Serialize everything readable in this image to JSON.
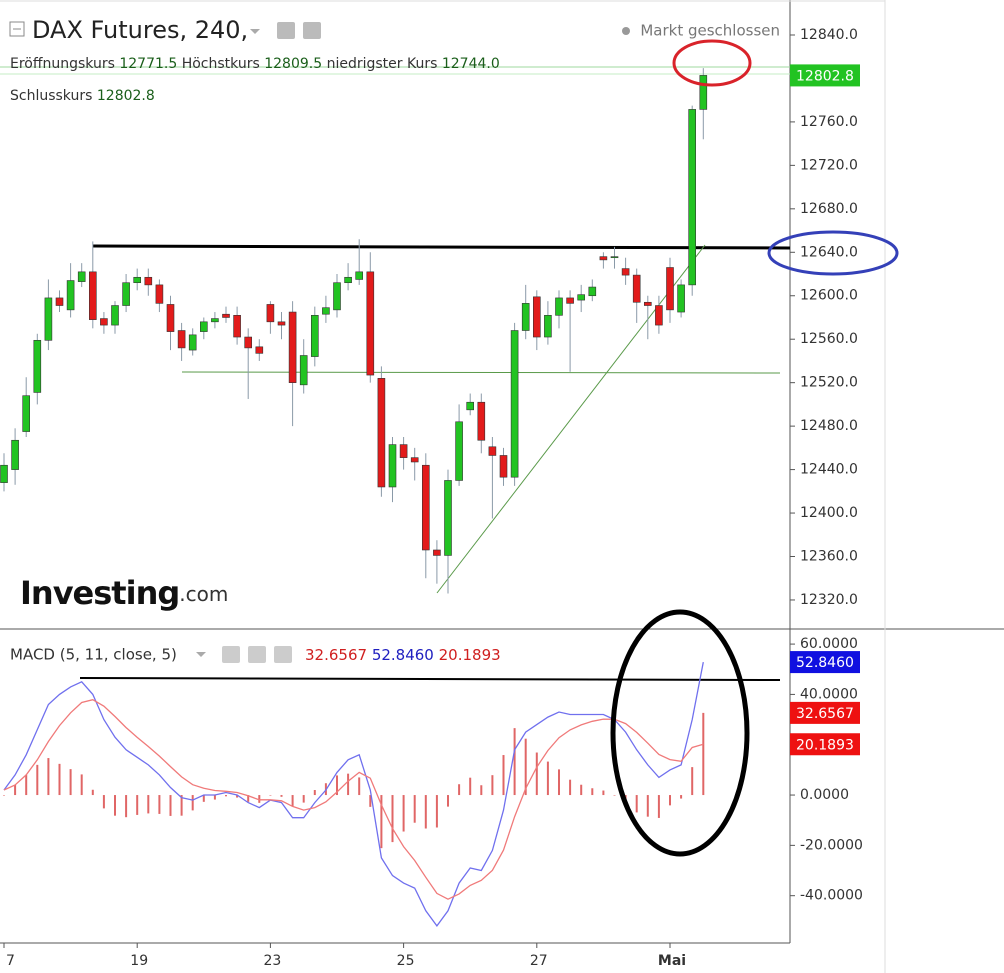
{
  "chart_data": [
    {
      "type": "candlestick",
      "title": "DAX Futures, 240,",
      "status": "Markt geschlossen",
      "header": {
        "open_label": "Eröffnungskurs",
        "high_label": "Höchstkurs",
        "low_label": "niedrigster Kurs",
        "close_label": "Schlusskurs",
        "value_labels": [
          "12771.5",
          "12809.5",
          "12744.0",
          "12802.8"
        ]
      },
      "logo": {
        "brand": "Investing",
        "suffix": ".com"
      },
      "up_color": "#22c322",
      "down_color": "#e21b1b",
      "open": [
        12428,
        12440,
        12475,
        12511,
        12559,
        12598,
        12587,
        12613,
        12622,
        12579,
        12573,
        12591,
        12612,
        12617,
        12610,
        12592,
        12568,
        12550,
        12567,
        12576,
        12583,
        12582,
        12562,
        12553,
        12592,
        12576,
        12585,
        12518,
        12544,
        12583,
        12587,
        12612,
        12615,
        12622,
        12524,
        12424,
        12463,
        12451,
        12444,
        12366,
        12361,
        12430,
        12495,
        12502,
        12461,
        12453,
        12433,
        12568,
        12599,
        12562,
        12582,
        12598,
        12596,
        12600,
        12636,
        12635,
        12625,
        12619,
        12594,
        12591,
        12626,
        12585,
        12610,
        12771.5
      ],
      "high": [
        12455,
        12478,
        12525,
        12565,
        12615,
        12605,
        12630,
        12630,
        12650,
        12585,
        12595,
        12620,
        12625,
        12625,
        12615,
        12600,
        12575,
        12570,
        12580,
        12585,
        12590,
        12590,
        12570,
        12560,
        12595,
        12585,
        12595,
        12560,
        12590,
        12600,
        12620,
        12630,
        12652,
        12640,
        12535,
        12470,
        12470,
        12460,
        12455,
        12375,
        12440,
        12500,
        12510,
        12510,
        12470,
        12460,
        12575,
        12610,
        12605,
        12595,
        12605,
        12605,
        12610,
        12615,
        12640,
        12645,
        12635,
        12625,
        12600,
        12600,
        12635,
        12615,
        12775,
        12809.5
      ],
      "low": [
        12420,
        12426,
        12470,
        12500,
        12550,
        12585,
        12580,
        12608,
        12570,
        12565,
        12565,
        12585,
        12605,
        12600,
        12585,
        12550,
        12540,
        12545,
        12560,
        12570,
        12575,
        12555,
        12505,
        12540,
        12565,
        12560,
        12480,
        12510,
        12535,
        12575,
        12580,
        12605,
        12610,
        12520,
        12415,
        12410,
        12440,
        12430,
        12340,
        12335,
        12326,
        12425,
        12490,
        12455,
        12395,
        12425,
        12425,
        12560,
        12550,
        12555,
        12570,
        12530,
        12585,
        12595,
        12625,
        12625,
        12610,
        12575,
        12560,
        12565,
        12575,
        12580,
        12600,
        12744
      ],
      "close": [
        12444,
        12467,
        12508,
        12559,
        12598,
        12591,
        12614,
        12622,
        12578,
        12573,
        12591,
        12612,
        12617,
        12610,
        12593,
        12567,
        12552,
        12564,
        12576,
        12579,
        12580,
        12562,
        12552,
        12547,
        12576,
        12573,
        12520,
        12545,
        12582,
        12589,
        12612,
        12617,
        12622,
        12527,
        12424,
        12463,
        12451,
        12447,
        12366,
        12361,
        12430,
        12484,
        12502,
        12467,
        12453,
        12433,
        12568,
        12593,
        12562,
        12582,
        12598,
        12593,
        12601,
        12608,
        12633,
        12636,
        12619,
        12594,
        12591,
        12573,
        12587,
        12610,
        12771.5,
        12802.8
      ],
      "ylim": [
        12294.2,
        12872.2
      ],
      "yticks": [
        {
          "value": 12840,
          "label": "12840.0"
        },
        {
          "value": 12760,
          "label": "12760.0"
        },
        {
          "value": 12720,
          "label": "12720.0"
        },
        {
          "value": 12680,
          "label": "12680.0"
        },
        {
          "value": 12640,
          "label": "12640.0"
        },
        {
          "value": 12600,
          "label": "12600.0"
        },
        {
          "value": 12560,
          "label": "12560.0"
        },
        {
          "value": 12520,
          "label": "12520.0"
        },
        {
          "value": 12480,
          "label": "12480.0"
        },
        {
          "value": 12440,
          "label": "12440.0"
        },
        {
          "value": 12400,
          "label": "12400.0"
        },
        {
          "value": 12360,
          "label": "12360.0"
        },
        {
          "value": 12320,
          "label": "12320.0"
        }
      ],
      "grid": false
    },
    {
      "type": "line",
      "title": "MACD (5, 11, close, 5)",
      "categories": [
        "7",
        null,
        null,
        null,
        null,
        null,
        null,
        null,
        null,
        null,
        null,
        null,
        "19",
        null,
        null,
        null,
        null,
        null,
        null,
        null,
        null,
        null,
        null,
        null,
        "23",
        null,
        null,
        null,
        null,
        null,
        null,
        null,
        null,
        null,
        null,
        null,
        "25",
        null,
        null,
        null,
        null,
        null,
        null,
        null,
        null,
        null,
        null,
        null,
        "27",
        null,
        null,
        null,
        null,
        null,
        null,
        null,
        null,
        null,
        null,
        null,
        "Mai",
        null,
        null,
        null
      ],
      "series": [
        {
          "type": "bar",
          "color": "#e06666",
          "last_value_label": "32.6567",
          "values": [
            0,
            4,
            8,
            12,
            14.7,
            12.4,
            10.3,
            8.2,
            2.1,
            -5.3,
            -8.2,
            -8.8,
            -7.9,
            -7.3,
            -7.5,
            -8.3,
            -8.2,
            -6.1,
            -2.7,
            -1.8,
            -0.5,
            -1.0,
            -2.7,
            -3.1,
            -0.1,
            -0.7,
            -4.5,
            -3.0,
            2.0,
            4.7,
            7.8,
            8.5,
            7.0,
            -4.7,
            -21.1,
            -18.7,
            -14.5,
            -11.0,
            -13.3,
            -12.9,
            -4.6,
            4.3,
            6.9,
            3.9,
            7.9,
            15.9,
            26.6,
            22.4,
            16.9,
            13.3,
            10.2,
            6.1,
            4.1,
            2.7,
            1.8,
            -0.1,
            -3.4,
            -6.9,
            -8.6,
            -9.1,
            -4.1,
            -1.4,
            11.1,
            32.6567
          ]
        },
        {
          "type": "line",
          "color": "#7070ee",
          "last_value_label": "52.8460",
          "values": [
            2,
            8,
            16,
            26,
            36,
            40,
            43,
            45,
            40,
            30,
            23,
            18,
            15,
            12,
            8,
            3,
            -1,
            -2,
            0,
            0,
            1,
            0,
            -3,
            -5,
            -2,
            -3,
            -9,
            -9,
            -3,
            2,
            9,
            14,
            16,
            2,
            -25,
            -32,
            -35,
            -37,
            -46,
            -52,
            -46,
            -35,
            -29,
            -30,
            -22,
            -6,
            18,
            25,
            28,
            31,
            33,
            32,
            32,
            32,
            32,
            30,
            25,
            18,
            12,
            7,
            10,
            12,
            30,
            52.846
          ]
        },
        {
          "type": "line",
          "color": "#f07a7a",
          "last_value_label": "20.1893",
          "values": [
            2,
            4,
            8,
            14,
            21.3,
            27.6,
            32.7,
            36.8,
            37.9,
            35.3,
            31.2,
            26.8,
            22.9,
            19.3,
            15.5,
            11.3,
            7.2,
            4.1,
            2.7,
            1.8,
            1.5,
            1.0,
            -0.3,
            -1.9,
            -1.9,
            -2.3,
            -4.5,
            -6.0,
            -5.0,
            -2.7,
            1.2,
            5.5,
            9.0,
            6.7,
            -3.9,
            -13.3,
            -20.5,
            -26.0,
            -32.7,
            -39.1,
            -41.4,
            -39.3,
            -35.9,
            -33.9,
            -29.9,
            -21.9,
            -8.6,
            2.6,
            11.1,
            17.7,
            22.8,
            25.9,
            27.9,
            29.3,
            30.2,
            30.1,
            28.4,
            24.9,
            20.6,
            16.1,
            14.1,
            13.4,
            18.9,
            20.1893
          ]
        }
      ],
      "ylim": [
        -59.6,
        65.6
      ],
      "yticks": [
        {
          "value": 60,
          "label": "60.0000"
        },
        {
          "value": 40,
          "label": "40.0000"
        },
        {
          "value": 0,
          "label": "0.0000"
        },
        {
          "value": -20,
          "label": "-20.0000"
        },
        {
          "value": -40,
          "label": "-40.0000"
        }
      ],
      "grid": false
    }
  ]
}
